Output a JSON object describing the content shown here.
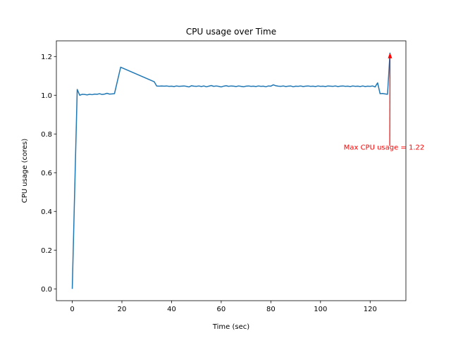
{
  "chart_data": {
    "type": "line",
    "title": "CPU usage over Time",
    "xlabel": "Time (sec)",
    "ylabel": "CPU usage (cores)",
    "xlim": [
      -6.4,
      134.4
    ],
    "ylim": [
      -0.061,
      1.281
    ],
    "xticks": [
      0,
      20,
      40,
      60,
      80,
      100,
      120
    ],
    "yticks": [
      0.0,
      0.2,
      0.4,
      0.6,
      0.8,
      1.0,
      1.2
    ],
    "xtick_labels": [
      "0",
      "20",
      "40",
      "60",
      "80",
      "100",
      "120"
    ],
    "ytick_labels": [
      "0.0",
      "0.2",
      "0.4",
      "0.6",
      "0.8",
      "1.0",
      "1.2"
    ],
    "grid": false,
    "line_color": "#1f77b4",
    "series": [
      {
        "x": [
          0,
          1,
          2,
          3,
          4,
          5,
          6,
          7,
          8,
          9,
          10,
          11,
          12,
          13,
          14,
          15,
          16,
          17,
          19.5,
          33,
          34,
          35,
          36,
          37,
          38,
          39,
          40,
          41,
          42,
          43,
          44,
          45,
          46,
          47,
          48,
          49,
          50,
          51,
          52,
          53,
          54,
          55,
          56,
          57,
          58,
          59,
          60,
          61,
          62,
          63,
          64,
          65,
          66,
          67,
          68,
          69,
          70,
          71,
          72,
          73,
          74,
          75,
          76,
          77,
          78,
          79,
          80,
          81,
          82,
          83,
          84,
          85,
          86,
          87,
          88,
          89,
          90,
          91,
          92,
          93,
          94,
          95,
          96,
          97,
          98,
          99,
          100,
          101,
          102,
          103,
          104,
          105,
          106,
          107,
          108,
          109,
          110,
          111,
          112,
          113,
          114,
          115,
          116,
          117,
          118,
          119,
          120,
          121,
          122,
          123,
          124,
          125,
          126,
          127,
          128
        ],
        "y": [
          0.0,
          0.52,
          1.03,
          1.0,
          1.005,
          1.004,
          1.002,
          1.005,
          1.003,
          1.006,
          1.005,
          1.008,
          1.004,
          1.006,
          1.01,
          1.006,
          1.007,
          1.008,
          1.145,
          1.07,
          1.048,
          1.047,
          1.048,
          1.047,
          1.048,
          1.046,
          1.047,
          1.045,
          1.048,
          1.046,
          1.047,
          1.048,
          1.046,
          1.043,
          1.049,
          1.047,
          1.046,
          1.048,
          1.045,
          1.048,
          1.044,
          1.047,
          1.05,
          1.046,
          1.048,
          1.046,
          1.043,
          1.047,
          1.049,
          1.046,
          1.048,
          1.047,
          1.045,
          1.048,
          1.046,
          1.044,
          1.047,
          1.048,
          1.046,
          1.047,
          1.045,
          1.048,
          1.046,
          1.047,
          1.044,
          1.048,
          1.047,
          1.054,
          1.049,
          1.047,
          1.046,
          1.048,
          1.045,
          1.047,
          1.048,
          1.044,
          1.047,
          1.046,
          1.048,
          1.045,
          1.047,
          1.048,
          1.046,
          1.047,
          1.045,
          1.048,
          1.046,
          1.047,
          1.045,
          1.048,
          1.047,
          1.046,
          1.048,
          1.045,
          1.047,
          1.048,
          1.046,
          1.047,
          1.045,
          1.048,
          1.046,
          1.047,
          1.045,
          1.048,
          1.045,
          1.047,
          1.046,
          1.048,
          1.043,
          1.064,
          1.008,
          1.009,
          1.007,
          1.005,
          1.22
        ]
      }
    ],
    "annotation": {
      "text": "Max CPU usage = 1.22",
      "color": "#ff0000",
      "point": [
        128,
        1.22
      ],
      "text_at": [
        127,
        0.72
      ]
    }
  }
}
